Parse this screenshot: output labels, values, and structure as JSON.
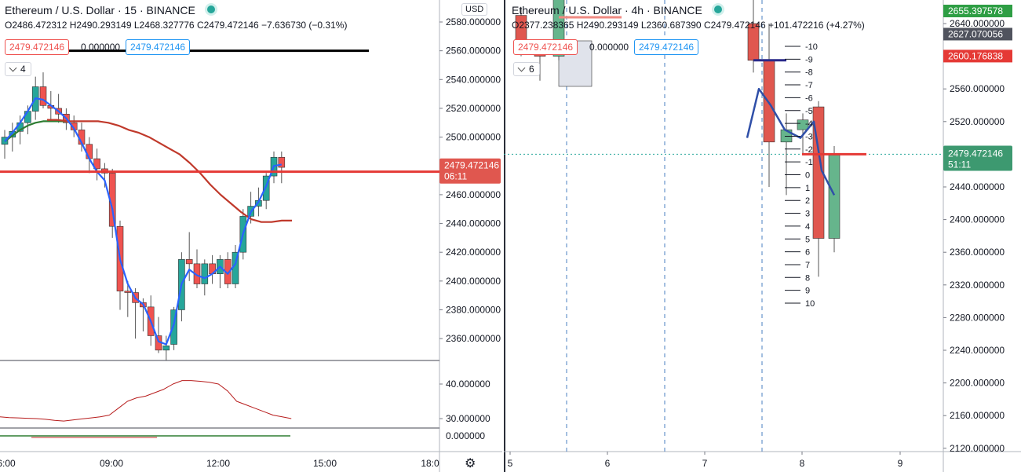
{
  "left_chart": {
    "symbol": "Ethereum / U.S. Dollar",
    "interval": "15",
    "exchange": "BINANCE",
    "ohlc": {
      "o": "O2486.472312",
      "h": "H2490.293149",
      "l": "L2468.327776",
      "c": "C2479.472146",
      "chg": "−7.636730 (−0.31%)"
    },
    "bid_box": "2479.472146",
    "spread_box": "0.000000",
    "ask_box": "2479.472146",
    "indicators_badge": "4",
    "currency": "USD",
    "price_label": "2479.472146",
    "countdown": "06:11",
    "colors": {
      "up": "#26a69a",
      "down": "#ef5350",
      "ma_fast": "#2962ff",
      "ma_slow": "#c0392b",
      "ma_green": "#2e7d32"
    },
    "y_ticks": [
      "2580.000000",
      "2560.000000",
      "2540.000000",
      "2520.000000",
      "2500.000000",
      "2480.000000",
      "2460.000000",
      "2440.000000",
      "2420.000000",
      "2400.000000",
      "2380.000000",
      "2360.000000"
    ],
    "osc_ticks": [
      "40.000000",
      "30.000000"
    ],
    "osc2_ticks": [
      "0.000000"
    ],
    "x_ticks": [
      "6:00",
      "09:00",
      "12:00",
      "15:00",
      "18:0"
    ]
  },
  "right_chart": {
    "symbol": "Ethereum / U.S. Dollar",
    "interval": "4h",
    "exchange": "BINANCE",
    "ohlc": {
      "o": "O2377.238365",
      "h": "H2490.293149",
      "l": "L2360.687390",
      "c": "C2479.472146",
      "chg": "+101.472216 (+4.27%)"
    },
    "bid_box": "2479.472146",
    "spread_box": "0.000000",
    "ask_box": "2479.472146",
    "indicators_badge": "6",
    "price_tags": [
      "2655.397578",
      "2627.070056",
      "2600.176838"
    ],
    "price_label": "2479.472146",
    "countdown": "51:11",
    "y_ticks": [
      "2640.000000",
      "2600.000000",
      "2560.000000",
      "2520.000000",
      "2480.000000",
      "2440.000000",
      "2400.000000",
      "2360.000000",
      "2320.000000",
      "2280.000000",
      "2240.000000",
      "2200.000000",
      "2160.000000",
      "2120.000000"
    ],
    "x_ticks": [
      "5",
      "6",
      "7",
      "8",
      "9"
    ],
    "ruler_labels": [
      "-10",
      "-9",
      "-8",
      "-7",
      "-6",
      "-5",
      "-4",
      "-3",
      "-2",
      "-1",
      "0",
      "1",
      "2",
      "3",
      "4",
      "5",
      "6",
      "7",
      "8",
      "9",
      "10"
    ]
  },
  "chart_data": [
    {
      "type": "candlestick",
      "title": "Ethereum / U.S. Dollar · 15 · BINANCE",
      "ylim": [
        2348,
        2590
      ],
      "candles": [
        [
          2495,
          2505,
          2485,
          2500
        ],
        [
          2500,
          2510,
          2490,
          2504
        ],
        [
          2504,
          2515,
          2495,
          2510
        ],
        [
          2510,
          2522,
          2502,
          2518
        ],
        [
          2518,
          2542,
          2512,
          2535
        ],
        [
          2535,
          2545,
          2520,
          2522
        ],
        [
          2522,
          2532,
          2512,
          2520
        ],
        [
          2520,
          2530,
          2510,
          2516
        ],
        [
          2516,
          2520,
          2505,
          2510
        ],
        [
          2510,
          2515,
          2500,
          2505
        ],
        [
          2505,
          2510,
          2490,
          2495
        ],
        [
          2495,
          2500,
          2475,
          2485
        ],
        [
          2485,
          2492,
          2470,
          2478
        ],
        [
          2478,
          2482,
          2465,
          2475
        ],
        [
          2475,
          2478,
          2430,
          2438
        ],
        [
          2438,
          2442,
          2380,
          2393
        ],
        [
          2393,
          2400,
          2375,
          2392
        ],
        [
          2392,
          2395,
          2360,
          2385
        ],
        [
          2385,
          2388,
          2365,
          2382
        ],
        [
          2382,
          2390,
          2355,
          2362
        ],
        [
          2362,
          2375,
          2350,
          2352
        ],
        [
          2352,
          2362,
          2345,
          2355
        ],
        [
          2356,
          2382,
          2352,
          2380
        ],
        [
          2380,
          2420,
          2372,
          2415
        ],
        [
          2415,
          2434,
          2400,
          2412
        ],
        [
          2412,
          2422,
          2395,
          2398
        ],
        [
          2398,
          2415,
          2390,
          2412
        ],
        [
          2412,
          2418,
          2398,
          2405
        ],
        [
          2405,
          2418,
          2395,
          2415
        ],
        [
          2415,
          2420,
          2395,
          2398
        ],
        [
          2398,
          2425,
          2395,
          2420
        ],
        [
          2420,
          2450,
          2415,
          2445
        ],
        [
          2445,
          2462,
          2440,
          2452
        ],
        [
          2452,
          2465,
          2445,
          2456
        ],
        [
          2456,
          2475,
          2450,
          2473
        ],
        [
          2473,
          2490,
          2468,
          2486
        ],
        [
          2486,
          2490,
          2468,
          2479
        ]
      ],
      "ma_fast": [
        2497,
        2503,
        2510,
        2518,
        2527,
        2526,
        2522,
        2518,
        2513,
        2506,
        2496,
        2485,
        2476,
        2470,
        2450,
        2415,
        2398,
        2388,
        2384,
        2372,
        2358,
        2356,
        2370,
        2398,
        2408,
        2404,
        2402,
        2405,
        2410,
        2405,
        2412,
        2433,
        2448,
        2455,
        2466,
        2480,
        2481
      ],
      "ma_slow": [
        2512,
        2512,
        2511,
        2511,
        2511,
        2511,
        2510,
        2508,
        2505,
        2503,
        2500,
        2496,
        2492,
        2488,
        2482,
        2475,
        2467,
        2460,
        2454,
        2448,
        2443,
        2441,
        2441,
        2442,
        2442
      ],
      "ma_green": [
        2497,
        2501,
        2505,
        2508,
        2510,
        2511,
        2511,
        2511,
        2511
      ],
      "level": 2476,
      "black_level": 2560,
      "oscillator": [
        30.5,
        30.3,
        30.2,
        30.1,
        30,
        29.8,
        29.5,
        29.3,
        29.6,
        29.9,
        30.2,
        30.5,
        31,
        33,
        35,
        36,
        36.5,
        37.5,
        38.5,
        40,
        41,
        41,
        40.8,
        40.5,
        40,
        38,
        35,
        34,
        33,
        32,
        31,
        30.5,
        30
      ],
      "osc_ylim": [
        25,
        45
      ]
    },
    {
      "type": "candlestick",
      "title": "Ethereum / U.S. Dollar · 4h · BINANCE",
      "ylim": [
        2110,
        2690
      ],
      "candles": [
        [
          2650,
          2660,
          2600,
          2608
        ],
        [
          2608,
          2612,
          2570,
          2600
        ],
        [
          2600,
          2700,
          2595,
          2680
        ],
        [
          2640,
          2750,
          2580,
          2595
        ],
        [
          2595,
          2640,
          2440,
          2495
        ],
        [
          2495,
          2530,
          2430,
          2510
        ],
        [
          2510,
          2530,
          2480,
          2522
        ],
        [
          2538,
          2545,
          2330,
          2377
        ],
        [
          2377,
          2490,
          2360,
          2479
        ]
      ],
      "ma": [
        2500,
        2560,
        2540,
        2510,
        2500,
        2520,
        2460,
        2430
      ],
      "level": 2480,
      "segment_level": 2595,
      "price_tags": [
        2655.397578,
        2627.070056,
        2600.176838
      ]
    }
  ]
}
